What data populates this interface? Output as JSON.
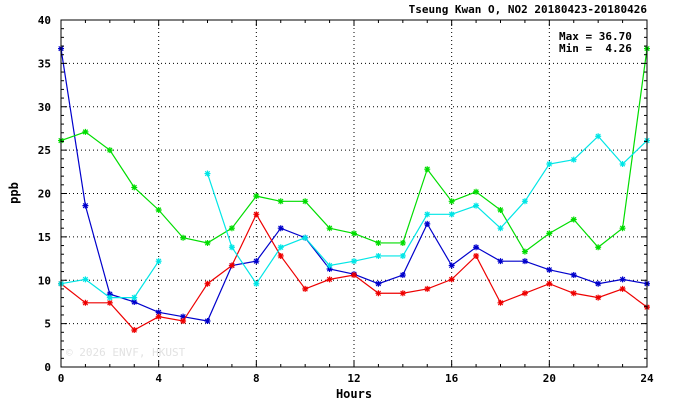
{
  "chart_data": {
    "type": "line",
    "title": "Tseung Kwan O, NO2 20180423-20180426",
    "xlabel": "Hours",
    "ylabel": "ppb",
    "xlim": [
      0,
      24
    ],
    "ylim": [
      0,
      40
    ],
    "xticks": [
      0,
      4,
      8,
      12,
      16,
      20,
      24
    ],
    "yticks": [
      0,
      5,
      10,
      15,
      20,
      25,
      30,
      35,
      40
    ],
    "grid": true,
    "marker": "asterisk",
    "stats": {
      "max_label": "Max = 36.70",
      "min_label": "Min =  4.26"
    },
    "watermark": "© 2026  ENVF, HKUST",
    "x": [
      0,
      1,
      2,
      3,
      4,
      5,
      6,
      7,
      8,
      9,
      10,
      11,
      12,
      13,
      14,
      15,
      16,
      17,
      18,
      19,
      20,
      21,
      22,
      23,
      24
    ],
    "series": [
      {
        "color": "#0000cc",
        "values": [
          36.7,
          18.6,
          8.4,
          7.5,
          6.3,
          5.8,
          5.3,
          11.7,
          12.2,
          16.0,
          14.9,
          11.3,
          10.7,
          9.6,
          10.6,
          16.5,
          11.7,
          13.8,
          12.2,
          12.2,
          11.2,
          10.6,
          9.6,
          10.1,
          9.6
        ]
      },
      {
        "color": "#ee0000",
        "values": [
          9.6,
          7.4,
          7.4,
          4.26,
          5.8,
          5.3,
          9.6,
          11.7,
          17.6,
          12.8,
          9.0,
          10.1,
          10.6,
          8.5,
          8.5,
          9.0,
          10.1,
          12.8,
          7.4,
          8.5,
          9.6,
          8.5,
          8.0,
          9.0,
          6.9
        ]
      },
      {
        "color": "#00dd00",
        "values": [
          26.1,
          27.1,
          25.0,
          20.7,
          18.1,
          14.9,
          14.3,
          16.0,
          19.7,
          19.1,
          19.1,
          16.0,
          15.4,
          14.3,
          14.3,
          22.8,
          19.1,
          20.2,
          18.1,
          13.3,
          15.4,
          17.0,
          13.8,
          16.0,
          36.7
        ]
      },
      {
        "color": "#00e6e6",
        "values": [
          9.6,
          10.1,
          8.0,
          8.0,
          12.2,
          null,
          22.3,
          13.8,
          9.6,
          13.8,
          14.9,
          11.7,
          12.2,
          12.8,
          12.8,
          17.6,
          17.6,
          18.6,
          16.0,
          19.1,
          23.4,
          23.9,
          26.6,
          23.4,
          26.1
        ]
      }
    ]
  }
}
